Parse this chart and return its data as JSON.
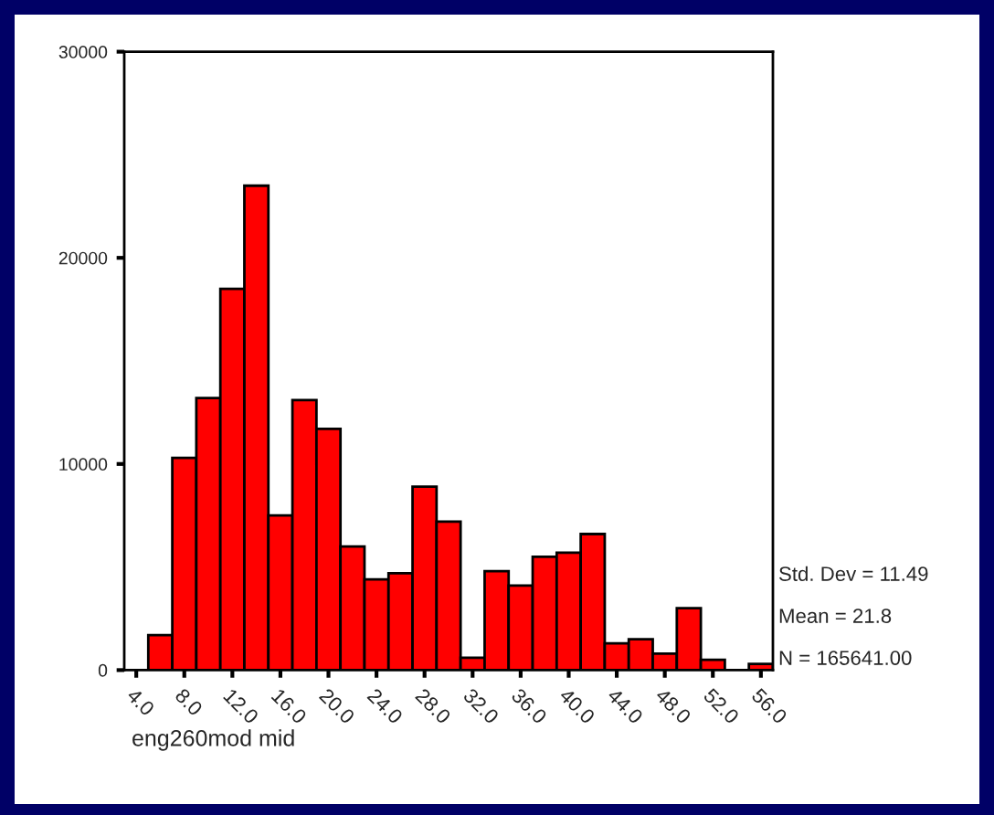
{
  "chart_data": {
    "type": "histogram",
    "xlabel": "eng260mod mid",
    "bins": [
      5,
      7,
      9,
      11,
      13,
      15,
      17,
      19,
      21,
      23,
      25,
      27,
      29,
      31,
      33,
      35,
      37,
      39,
      41,
      43,
      45,
      47,
      49,
      51,
      53,
      55,
      57
    ],
    "values": [
      1700,
      10300,
      13200,
      18500,
      23500,
      7500,
      13100,
      11700,
      6000,
      4400,
      4700,
      8900,
      7200,
      600,
      4800,
      4100,
      5500,
      5700,
      6600,
      1300,
      1500,
      800,
      3000,
      500,
      0,
      300
    ],
    "color": "#ff0000",
    "xlim": [
      3,
      57
    ],
    "xticks": [
      {
        "value": 4,
        "label": "4.0"
      },
      {
        "value": 8,
        "label": "8.0"
      },
      {
        "value": 12,
        "label": "12.0"
      },
      {
        "value": 16,
        "label": "16.0"
      },
      {
        "value": 20,
        "label": "20.0"
      },
      {
        "value": 24,
        "label": "24.0"
      },
      {
        "value": 28,
        "label": "28.0"
      },
      {
        "value": 32,
        "label": "32.0"
      },
      {
        "value": 36,
        "label": "36.0"
      },
      {
        "value": 40,
        "label": "40.0"
      },
      {
        "value": 44,
        "label": "44.0"
      },
      {
        "value": 48,
        "label": "48.0"
      },
      {
        "value": 52,
        "label": "52.0"
      },
      {
        "value": 56,
        "label": "56.0"
      }
    ],
    "ylim": [
      0,
      30000
    ],
    "yticks": [
      0,
      10000,
      20000,
      30000
    ],
    "grid": false,
    "annotations": [
      "Std. Dev = 11.49",
      "Mean = 21.8",
      "N = 165641.00"
    ]
  }
}
